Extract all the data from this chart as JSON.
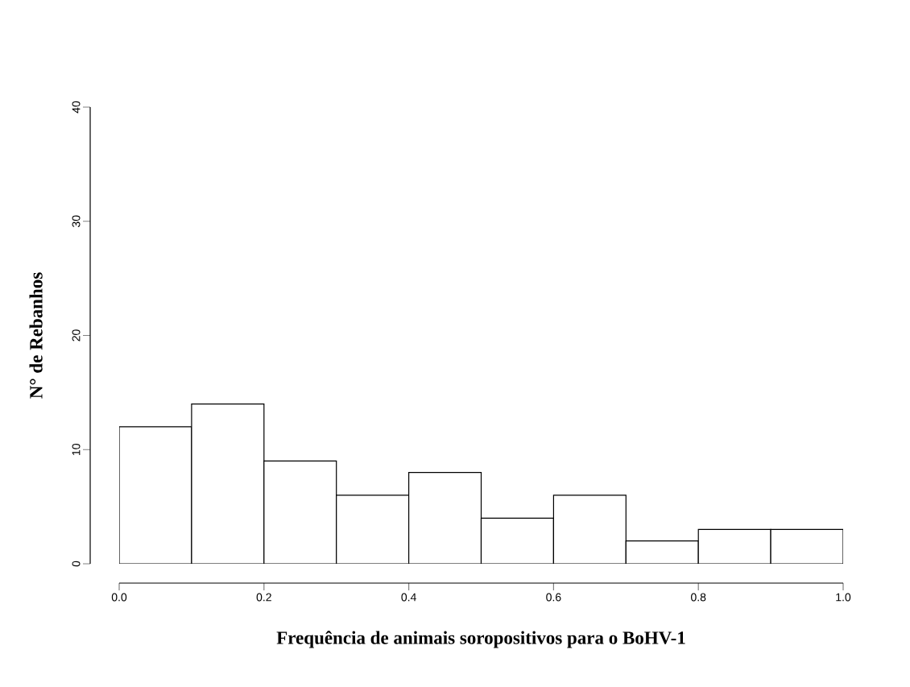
{
  "chart_data": {
    "type": "histogram",
    "xlabel": "Frequência de animais soropositivos para o BoHV-1",
    "ylabel": "N° de Rebanhos",
    "bins": [
      0.0,
      0.1,
      0.2,
      0.3,
      0.4,
      0.5,
      0.6,
      0.7,
      0.8,
      0.9,
      1.0
    ],
    "values": [
      12,
      14,
      9,
      6,
      8,
      4,
      6,
      2,
      3,
      3
    ],
    "color": "#ffffff",
    "xlim": [
      0,
      1
    ],
    "xticks": [
      {
        "value": 0,
        "label": "0.0"
      },
      {
        "value": 0.2,
        "label": "0.2"
      },
      {
        "value": 0.4,
        "label": "0.4"
      },
      {
        "value": 0.6,
        "label": "0.6"
      },
      {
        "value": 0.8,
        "label": "0.8"
      },
      {
        "value": 1,
        "label": "1.0"
      }
    ],
    "ylim": [
      0,
      40
    ],
    "yticks": [
      0,
      10,
      20,
      30,
      40
    ],
    "grid": false
  }
}
